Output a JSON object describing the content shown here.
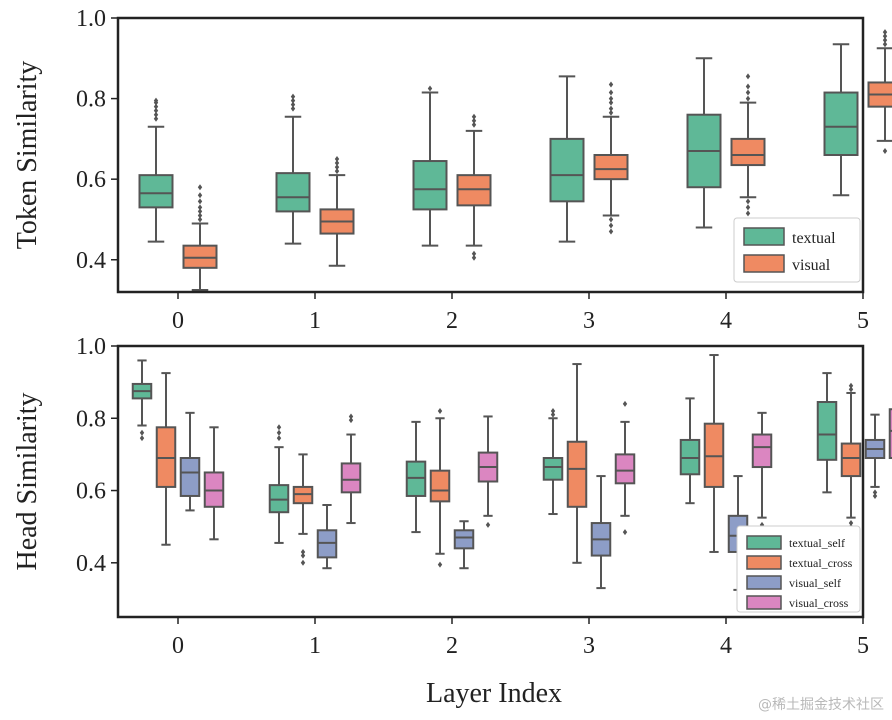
{
  "watermark": "@稀土掘金技术社区",
  "colors": {
    "textual": "#5fb897",
    "visual": "#ef8a62",
    "textual_self": "#5fb897",
    "textual_cross": "#ef8a62",
    "visual_self": "#8d9dc7",
    "visual_cross": "#db86c1",
    "axis": "#222222",
    "whisker": "#555555"
  },
  "chart_data": [
    {
      "type": "boxplot",
      "title": "",
      "xlabel": "",
      "ylabel": "Token Similarity",
      "ylim": [
        0.32,
        1.0
      ],
      "yticks": [
        "0.4",
        "0.6",
        "0.8",
        "1.0"
      ],
      "categories": [
        "0",
        "1",
        "2",
        "3",
        "4",
        "5"
      ],
      "legend": {
        "position": "bottom-right",
        "entries": [
          "textual",
          "visual"
        ]
      },
      "series": [
        {
          "name": "textual",
          "boxes": [
            {
              "q1": 0.53,
              "median": 0.565,
              "q3": 0.61,
              "whislo": 0.445,
              "whishi": 0.73,
              "fliers": [
                0.75,
                0.76,
                0.77,
                0.78,
                0.79,
                0.795
              ]
            },
            {
              "q1": 0.52,
              "median": 0.555,
              "q3": 0.615,
              "whislo": 0.44,
              "whishi": 0.755,
              "fliers": [
                0.775,
                0.785,
                0.795,
                0.805
              ]
            },
            {
              "q1": 0.525,
              "median": 0.575,
              "q3": 0.645,
              "whislo": 0.435,
              "whishi": 0.815,
              "fliers": [
                0.825
              ]
            },
            {
              "q1": 0.545,
              "median": 0.61,
              "q3": 0.7,
              "whislo": 0.445,
              "whishi": 0.855,
              "fliers": []
            },
            {
              "q1": 0.58,
              "median": 0.67,
              "q3": 0.76,
              "whislo": 0.48,
              "whishi": 0.9,
              "fliers": []
            },
            {
              "q1": 0.66,
              "median": 0.73,
              "q3": 0.815,
              "whislo": 0.56,
              "whishi": 0.935,
              "fliers": []
            }
          ]
        },
        {
          "name": "visual",
          "boxes": [
            {
              "q1": 0.38,
              "median": 0.405,
              "q3": 0.435,
              "whislo": 0.325,
              "whishi": 0.49,
              "fliers": [
                0.5,
                0.51,
                0.52,
                0.53,
                0.545,
                0.56,
                0.58
              ]
            },
            {
              "q1": 0.465,
              "median": 0.495,
              "q3": 0.525,
              "whislo": 0.385,
              "whishi": 0.61,
              "fliers": [
                0.62,
                0.63,
                0.64,
                0.65
              ]
            },
            {
              "q1": 0.535,
              "median": 0.575,
              "q3": 0.61,
              "whislo": 0.435,
              "whishi": 0.72,
              "fliers": [
                0.415,
                0.405,
                0.735,
                0.745,
                0.755
              ]
            },
            {
              "q1": 0.6,
              "median": 0.625,
              "q3": 0.66,
              "whislo": 0.51,
              "whishi": 0.755,
              "fliers": [
                0.765,
                0.775,
                0.79,
                0.8,
                0.815,
                0.835,
                0.5,
                0.485,
                0.47
              ]
            },
            {
              "q1": 0.635,
              "median": 0.66,
              "q3": 0.7,
              "whislo": 0.555,
              "whishi": 0.79,
              "fliers": [
                0.8,
                0.815,
                0.83,
                0.855,
                0.545,
                0.53,
                0.515
              ]
            },
            {
              "q1": 0.78,
              "median": 0.81,
              "q3": 0.84,
              "whislo": 0.695,
              "whishi": 0.925,
              "fliers": [
                0.935,
                0.945,
                0.955,
                0.965,
                0.67
              ]
            }
          ]
        }
      ]
    },
    {
      "type": "boxplot",
      "title": "",
      "xlabel": "Layer Index",
      "ylabel": "Head Similarity",
      "ylim": [
        0.25,
        1.0
      ],
      "yticks": [
        "0.4",
        "0.6",
        "0.8",
        "1.0"
      ],
      "categories": [
        "0",
        "1",
        "2",
        "3",
        "4",
        "5"
      ],
      "legend": {
        "position": "bottom-right",
        "entries": [
          "textual_self",
          "textual_cross",
          "visual_self",
          "visual_cross"
        ]
      },
      "series": [
        {
          "name": "textual_self",
          "boxes": [
            {
              "q1": 0.855,
              "median": 0.875,
              "q3": 0.895,
              "whislo": 0.78,
              "whishi": 0.96,
              "fliers": [
                0.76,
                0.745
              ]
            },
            {
              "q1": 0.54,
              "median": 0.575,
              "q3": 0.615,
              "whislo": 0.455,
              "whishi": 0.72,
              "fliers": [
                0.745,
                0.76,
                0.775
              ]
            },
            {
              "q1": 0.585,
              "median": 0.635,
              "q3": 0.68,
              "whislo": 0.485,
              "whishi": 0.79,
              "fliers": []
            },
            {
              "q1": 0.63,
              "median": 0.665,
              "q3": 0.69,
              "whislo": 0.535,
              "whishi": 0.8,
              "fliers": [
                0.81,
                0.82
              ]
            },
            {
              "q1": 0.645,
              "median": 0.69,
              "q3": 0.74,
              "whislo": 0.565,
              "whishi": 0.855,
              "fliers": []
            },
            {
              "q1": 0.685,
              "median": 0.755,
              "q3": 0.845,
              "whislo": 0.595,
              "whishi": 0.925,
              "fliers": []
            }
          ]
        },
        {
          "name": "textual_cross",
          "boxes": [
            {
              "q1": 0.61,
              "median": 0.69,
              "q3": 0.775,
              "whislo": 0.45,
              "whishi": 0.925,
              "fliers": []
            },
            {
              "q1": 0.565,
              "median": 0.59,
              "q3": 0.61,
              "whislo": 0.48,
              "whishi": 0.7,
              "fliers": [
                0.43,
                0.42,
                0.4
              ]
            },
            {
              "q1": 0.57,
              "median": 0.6,
              "q3": 0.655,
              "whislo": 0.425,
              "whishi": 0.8,
              "fliers": [
                0.395,
                0.82
              ]
            },
            {
              "q1": 0.555,
              "median": 0.66,
              "q3": 0.735,
              "whislo": 0.4,
              "whishi": 0.95,
              "fliers": []
            },
            {
              "q1": 0.61,
              "median": 0.695,
              "q3": 0.785,
              "whislo": 0.43,
              "whishi": 0.975,
              "fliers": []
            },
            {
              "q1": 0.64,
              "median": 0.69,
              "q3": 0.73,
              "whislo": 0.525,
              "whishi": 0.87,
              "fliers": [
                0.88,
                0.89,
                0.5,
                0.51
              ]
            }
          ]
        },
        {
          "name": "visual_self",
          "boxes": [
            {
              "q1": 0.585,
              "median": 0.65,
              "q3": 0.69,
              "whislo": 0.545,
              "whishi": 0.815,
              "fliers": []
            },
            {
              "q1": 0.415,
              "median": 0.455,
              "q3": 0.49,
              "whislo": 0.385,
              "whishi": 0.56,
              "fliers": []
            },
            {
              "q1": 0.44,
              "median": 0.47,
              "q3": 0.49,
              "whislo": 0.385,
              "whishi": 0.515,
              "fliers": []
            },
            {
              "q1": 0.42,
              "median": 0.465,
              "q3": 0.51,
              "whislo": 0.33,
              "whishi": 0.64,
              "fliers": []
            },
            {
              "q1": 0.43,
              "median": 0.475,
              "q3": 0.53,
              "whislo": 0.325,
              "whishi": 0.64,
              "fliers": []
            },
            {
              "q1": 0.69,
              "median": 0.715,
              "q3": 0.74,
              "whislo": 0.61,
              "whishi": 0.81,
              "fliers": [
                0.595,
                0.585
              ]
            }
          ]
        },
        {
          "name": "visual_cross",
          "boxes": [
            {
              "q1": 0.555,
              "median": 0.6,
              "q3": 0.65,
              "whislo": 0.465,
              "whishi": 0.775,
              "fliers": []
            },
            {
              "q1": 0.595,
              "median": 0.63,
              "q3": 0.675,
              "whislo": 0.51,
              "whishi": 0.755,
              "fliers": [
                0.795,
                0.805
              ]
            },
            {
              "q1": 0.625,
              "median": 0.665,
              "q3": 0.705,
              "whislo": 0.53,
              "whishi": 0.805,
              "fliers": [
                0.505
              ]
            },
            {
              "q1": 0.62,
              "median": 0.655,
              "q3": 0.7,
              "whislo": 0.53,
              "whishi": 0.79,
              "fliers": [
                0.84,
                0.485
              ]
            },
            {
              "q1": 0.665,
              "median": 0.72,
              "q3": 0.755,
              "whislo": 0.525,
              "whishi": 0.815,
              "fliers": [
                0.505
              ]
            },
            {
              "q1": 0.69,
              "median": 0.765,
              "q3": 0.825,
              "whislo": 0.62,
              "whishi": 0.91,
              "fliers": []
            }
          ]
        }
      ]
    }
  ]
}
